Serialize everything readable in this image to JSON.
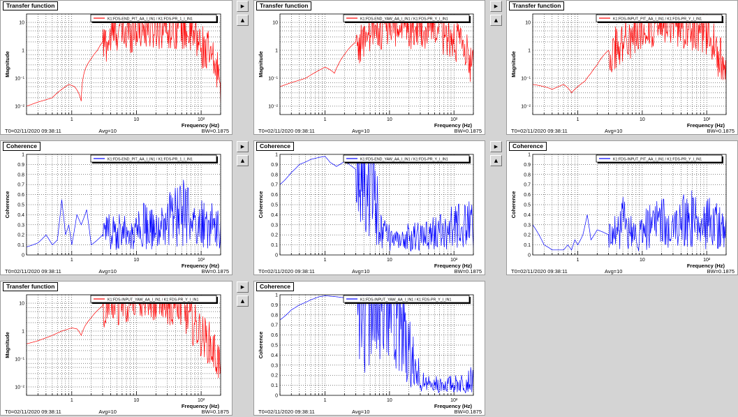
{
  "panels": [
    {
      "title": "Transfer function",
      "chart_type": "transfer",
      "legend": "K1:FDS-END_PIT_AA_I_IN1 / K1:FDS-PR_1_I_IN1",
      "ylabel": "Magnitude",
      "xlabel": "Frequency (Hz)",
      "t0": "T0=02/11/2020 09:38:11",
      "avg": "Avg=10",
      "bw": "BW=0.1875",
      "color": "#ff0000"
    },
    {
      "title": "Transfer function",
      "chart_type": "transfer",
      "legend": "K1:FDS-END_YAW_AA_I_IN1 / K1:FDS-PR_Y_I_IN1",
      "ylabel": "Magnitude",
      "xlabel": "Frequency (Hz)",
      "t0": "T0=02/11/2020 09:38:11",
      "avg": "Avg=10",
      "bw": "BW=0.1875",
      "color": "#ff0000"
    },
    {
      "title": "Transfer function",
      "chart_type": "transfer",
      "legend": "K1:FDS-INPUT_PIT_AA_I_IN1 / K1:FDS-PR_Y_I_IN1",
      "ylabel": "Magnitude",
      "xlabel": "Frequency (Hz)",
      "t0": "T0=02/11/2020 09:38:11",
      "avg": "Avg=10",
      "bw": "BW=0.1875",
      "color": "#ff0000"
    },
    {
      "title": "Coherence",
      "chart_type": "coherence",
      "legend": "K1:FDS-END_PIT_AA_I_IN1 / K1:FDS-PR_1_I_IN1",
      "ylabel": "Coherence",
      "xlabel": "Frequency (Hz)",
      "t0": "T0=02/11/2020 09:38:11",
      "avg": "Avg=10",
      "bw": "BW=0.1875",
      "color": "#0000ff"
    },
    {
      "title": "Coherence",
      "chart_type": "coherence",
      "legend": "K1:FDS-END_YAW_AA_I_IN1 / K1:FDS-PR_Y_I_IN1",
      "ylabel": "Coherence",
      "xlabel": "Frequency (Hz)",
      "t0": "T0=02/11/2020 09:38:11",
      "avg": "Avg=10",
      "bw": "BW=0.1875",
      "color": "#0000ff"
    },
    {
      "title": "Coherence",
      "chart_type": "coherence",
      "legend": "K1:FDS-INPUT_PIT_AA_I_IN1 / K1:FDS-PR_Y_I_IN1",
      "ylabel": "Coherence",
      "xlabel": "Frequency (Hz)",
      "t0": "T0=02/11/2020 09:38:11",
      "avg": "Avg=10",
      "bw": "BW=0.1875",
      "color": "#0000ff"
    },
    {
      "title": "Transfer function",
      "chart_type": "transfer",
      "legend": "K1:FDS-INPUT_YAW_AA_I_IN1 / K1:FDS-PR_Y_I_IN1",
      "ylabel": "Magnitude",
      "xlabel": "Frequency (Hz)",
      "t0": "T0=02/11/2020 09:38:11",
      "avg": "Avg=10",
      "bw": "BW=0.1875",
      "color": "#ff0000"
    },
    {
      "title": "Coherence",
      "chart_type": "coherence",
      "legend": "K1:FDS-INPUT_YAW_AA_I_IN1 / K1:FDS-PR_Y_I_IN1",
      "ylabel": "Coherence",
      "xlabel": "Frequency (Hz)",
      "t0": "T0=02/11/2020 09:38:11",
      "avg": "Avg=10",
      "bw": "BW=0.1875",
      "color": "#0000ff"
    }
  ],
  "controls": {
    "right_arrow": "▶",
    "up_arrow": "▲"
  },
  "chart_data": [
    {
      "type": "line",
      "title": "Transfer function",
      "xlabel": "Frequency (Hz)",
      "ylabel": "Magnitude",
      "x_scale": "log",
      "y_scale": "log",
      "xlim": [
        0.2,
        200
      ],
      "ylim": [
        0.005,
        20
      ],
      "x_ticks": [
        "1",
        "10",
        "10²"
      ],
      "y_ticks": [
        "10⁻²",
        "10⁻¹",
        "1",
        "10"
      ],
      "series": [
        {
          "name": "K1:FDS-END_PIT_AA_I_IN1 / K1:FDS-PR_1_I_IN1",
          "x": [
            0.2,
            0.3,
            0.5,
            0.7,
            0.9,
            1.1,
            1.4,
            1.6,
            2,
            2.5,
            3,
            4,
            5,
            7,
            10,
            14,
            20,
            30,
            50,
            70,
            100,
            150,
            200
          ],
          "y": [
            0.01,
            0.014,
            0.02,
            0.04,
            0.06,
            0.05,
            0.015,
            0.2,
            0.5,
            1,
            2,
            4,
            8,
            5,
            10,
            8,
            10,
            10,
            10,
            5,
            2,
            0.5,
            0.1
          ]
        }
      ]
    },
    {
      "type": "line",
      "title": "Transfer function",
      "xlabel": "Frequency (Hz)",
      "ylabel": "Magnitude",
      "x_scale": "log",
      "y_scale": "log",
      "xlim": [
        0.2,
        200
      ],
      "ylim": [
        0.005,
        20
      ],
      "x_ticks": [
        "1",
        "10",
        "10²"
      ],
      "y_ticks": [
        "10⁻²",
        "10⁻¹",
        "1",
        "10"
      ],
      "series": [
        {
          "name": "K1:FDS-END_YAW_AA_I_IN1 / K1:FDS-PR_Y_I_IN1",
          "x": [
            0.2,
            0.3,
            0.5,
            0.7,
            1,
            1.2,
            1.4,
            1.6,
            2,
            3,
            5,
            7,
            10,
            14,
            20,
            30,
            50,
            70,
            100,
            150,
            200
          ],
          "y": [
            0.05,
            0.07,
            0.1,
            0.16,
            0.25,
            0.2,
            0.15,
            0.3,
            0.7,
            2,
            5,
            8,
            10,
            10,
            10,
            10,
            10,
            6,
            3,
            1,
            0.2
          ]
        }
      ]
    },
    {
      "type": "line",
      "title": "Transfer function",
      "xlabel": "Frequency (Hz)",
      "ylabel": "Magnitude",
      "x_scale": "log",
      "y_scale": "log",
      "xlim": [
        0.2,
        200
      ],
      "ylim": [
        0.005,
        20
      ],
      "x_ticks": [
        "1",
        "10",
        "10²"
      ],
      "y_ticks": [
        "10⁻²",
        "10⁻¹",
        "1",
        "10"
      ],
      "series": [
        {
          "name": "K1:FDS-INPUT_PIT_AA_I_IN1 / K1:FDS-PR_Y_I_IN1",
          "x": [
            0.2,
            0.3,
            0.4,
            0.6,
            0.8,
            1,
            1.3,
            1.6,
            2,
            3,
            5,
            7,
            10,
            14,
            20,
            30,
            50,
            70,
            100,
            150,
            200
          ],
          "y": [
            0.06,
            0.05,
            0.04,
            0.06,
            0.03,
            0.05,
            0.08,
            0.15,
            0.3,
            1,
            3,
            5,
            8,
            10,
            10,
            10,
            10,
            8,
            4,
            1,
            0.1
          ]
        }
      ]
    },
    {
      "type": "line",
      "title": "Coherence",
      "xlabel": "Frequency (Hz)",
      "ylabel": "Coherence",
      "x_scale": "log",
      "y_scale": "linear",
      "xlim": [
        0.2,
        200
      ],
      "ylim": [
        0,
        1
      ],
      "x_ticks": [
        "1",
        "10",
        "10²"
      ],
      "y_ticks": [
        "0",
        "0.1",
        "0.2",
        "0.3",
        "0.4",
        "0.5",
        "0.6",
        "0.7",
        "0.8",
        "0.9",
        "1"
      ],
      "series": [
        {
          "name": "K1:FDS-END_PIT_AA_I_IN1 / K1:FDS-PR_1_I_IN1",
          "x": [
            0.2,
            0.3,
            0.4,
            0.5,
            0.6,
            0.7,
            0.8,
            0.9,
            1,
            1.2,
            1.4,
            1.7,
            2,
            3,
            5,
            8,
            12,
            20,
            30,
            50,
            80,
            120,
            200
          ],
          "y": [
            0.08,
            0.12,
            0.2,
            0.1,
            0.15,
            0.55,
            0.2,
            0.3,
            0.1,
            0.4,
            0.3,
            0.45,
            0.1,
            0.2,
            0.25,
            0.15,
            0.3,
            0.2,
            0.3,
            0.4,
            0.25,
            0.3,
            0.2
          ]
        }
      ]
    },
    {
      "type": "line",
      "title": "Coherence",
      "xlabel": "Frequency (Hz)",
      "ylabel": "Coherence",
      "x_scale": "log",
      "y_scale": "linear",
      "xlim": [
        0.2,
        200
      ],
      "ylim": [
        0,
        1
      ],
      "x_ticks": [
        "1",
        "10",
        "10²"
      ],
      "y_ticks": [
        "0",
        "0.1",
        "0.2",
        "0.3",
        "0.4",
        "0.5",
        "0.6",
        "0.7",
        "0.8",
        "0.9",
        "1"
      ],
      "series": [
        {
          "name": "K1:FDS-END_YAW_AA_I_IN1 / K1:FDS-PR_Y_I_IN1",
          "x": [
            0.2,
            0.3,
            0.4,
            0.6,
            0.8,
            1,
            1.2,
            1.5,
            2,
            3,
            4,
            5,
            6,
            7,
            8,
            10,
            15,
            20,
            30,
            50,
            100,
            200
          ],
          "y": [
            0.7,
            0.82,
            0.9,
            0.95,
            0.97,
            0.98,
            0.92,
            0.88,
            0.93,
            0.85,
            0.8,
            0.7,
            0.5,
            0.3,
            0.2,
            0.15,
            0.1,
            0.2,
            0.15,
            0.2,
            0.25,
            0.3
          ]
        }
      ]
    },
    {
      "type": "line",
      "title": "Coherence",
      "xlabel": "Frequency (Hz)",
      "ylabel": "Coherence",
      "x_scale": "log",
      "y_scale": "linear",
      "xlim": [
        0.2,
        200
      ],
      "ylim": [
        0,
        1
      ],
      "x_ticks": [
        "1",
        "10",
        "10²"
      ],
      "y_ticks": [
        "0",
        "0.1",
        "0.2",
        "0.3",
        "0.4",
        "0.5",
        "0.6",
        "0.7",
        "0.8",
        "0.9",
        "1"
      ],
      "series": [
        {
          "name": "K1:FDS-INPUT_PIT_AA_I_IN1 / K1:FDS-PR_Y_I_IN1",
          "x": [
            0.2,
            0.3,
            0.4,
            0.5,
            0.6,
            0.7,
            0.8,
            0.9,
            1,
            1.2,
            1.4,
            1.6,
            2,
            3,
            5,
            8,
            12,
            20,
            30,
            50,
            80,
            120,
            200
          ],
          "y": [
            0.3,
            0.1,
            0.05,
            0.05,
            0.05,
            0.1,
            0.05,
            0.15,
            0.1,
            0.2,
            0.4,
            0.15,
            0.25,
            0.2,
            0.3,
            0.15,
            0.25,
            0.3,
            0.2,
            0.35,
            0.25,
            0.3,
            0.2
          ]
        }
      ]
    },
    {
      "type": "line",
      "title": "Transfer function",
      "xlabel": "Frequency (Hz)",
      "ylabel": "Magnitude",
      "x_scale": "log",
      "y_scale": "log",
      "xlim": [
        0.2,
        200
      ],
      "ylim": [
        0.005,
        20
      ],
      "x_ticks": [
        "1",
        "10",
        "10²"
      ],
      "y_ticks": [
        "10⁻²",
        "10⁻¹",
        "1",
        "10"
      ],
      "series": [
        {
          "name": "K1:FDS-INPUT_YAW_AA_I_IN1 / K1:FDS-PR_Y_I_IN1",
          "x": [
            0.2,
            0.3,
            0.5,
            0.7,
            1,
            1.2,
            1.4,
            1.6,
            2,
            3,
            5,
            7,
            10,
            14,
            20,
            30,
            50,
            70,
            100,
            150,
            200
          ],
          "y": [
            0.35,
            0.45,
            0.7,
            1,
            1.3,
            1.2,
            0.7,
            1.5,
            3,
            8,
            15,
            18,
            20,
            20,
            20,
            15,
            8,
            3,
            1,
            0.3,
            0.05
          ]
        }
      ]
    },
    {
      "type": "line",
      "title": "Coherence",
      "xlabel": "Frequency (Hz)",
      "ylabel": "Coherence",
      "x_scale": "log",
      "y_scale": "linear",
      "xlim": [
        0.2,
        200
      ],
      "ylim": [
        0,
        1
      ],
      "x_ticks": [
        "1",
        "10",
        "10²"
      ],
      "y_ticks": [
        "0",
        "0.1",
        "0.2",
        "0.3",
        "0.4",
        "0.5",
        "0.6",
        "0.7",
        "0.8",
        "0.9",
        "1"
      ],
      "series": [
        {
          "name": "K1:FDS-INPUT_YAW_AA_I_IN1 / K1:FDS-PR_Y_I_IN1",
          "x": [
            0.2,
            0.3,
            0.4,
            0.6,
            0.8,
            1,
            1.5,
            2,
            3,
            5,
            8,
            10,
            15,
            20,
            25,
            30,
            40,
            60,
            100,
            200
          ],
          "y": [
            0.75,
            0.85,
            0.9,
            0.95,
            0.98,
            0.99,
            0.98,
            0.97,
            0.97,
            0.95,
            0.92,
            0.85,
            0.7,
            0.4,
            0.25,
            0.15,
            0.1,
            0.1,
            0.1,
            0.15
          ]
        }
      ]
    }
  ]
}
